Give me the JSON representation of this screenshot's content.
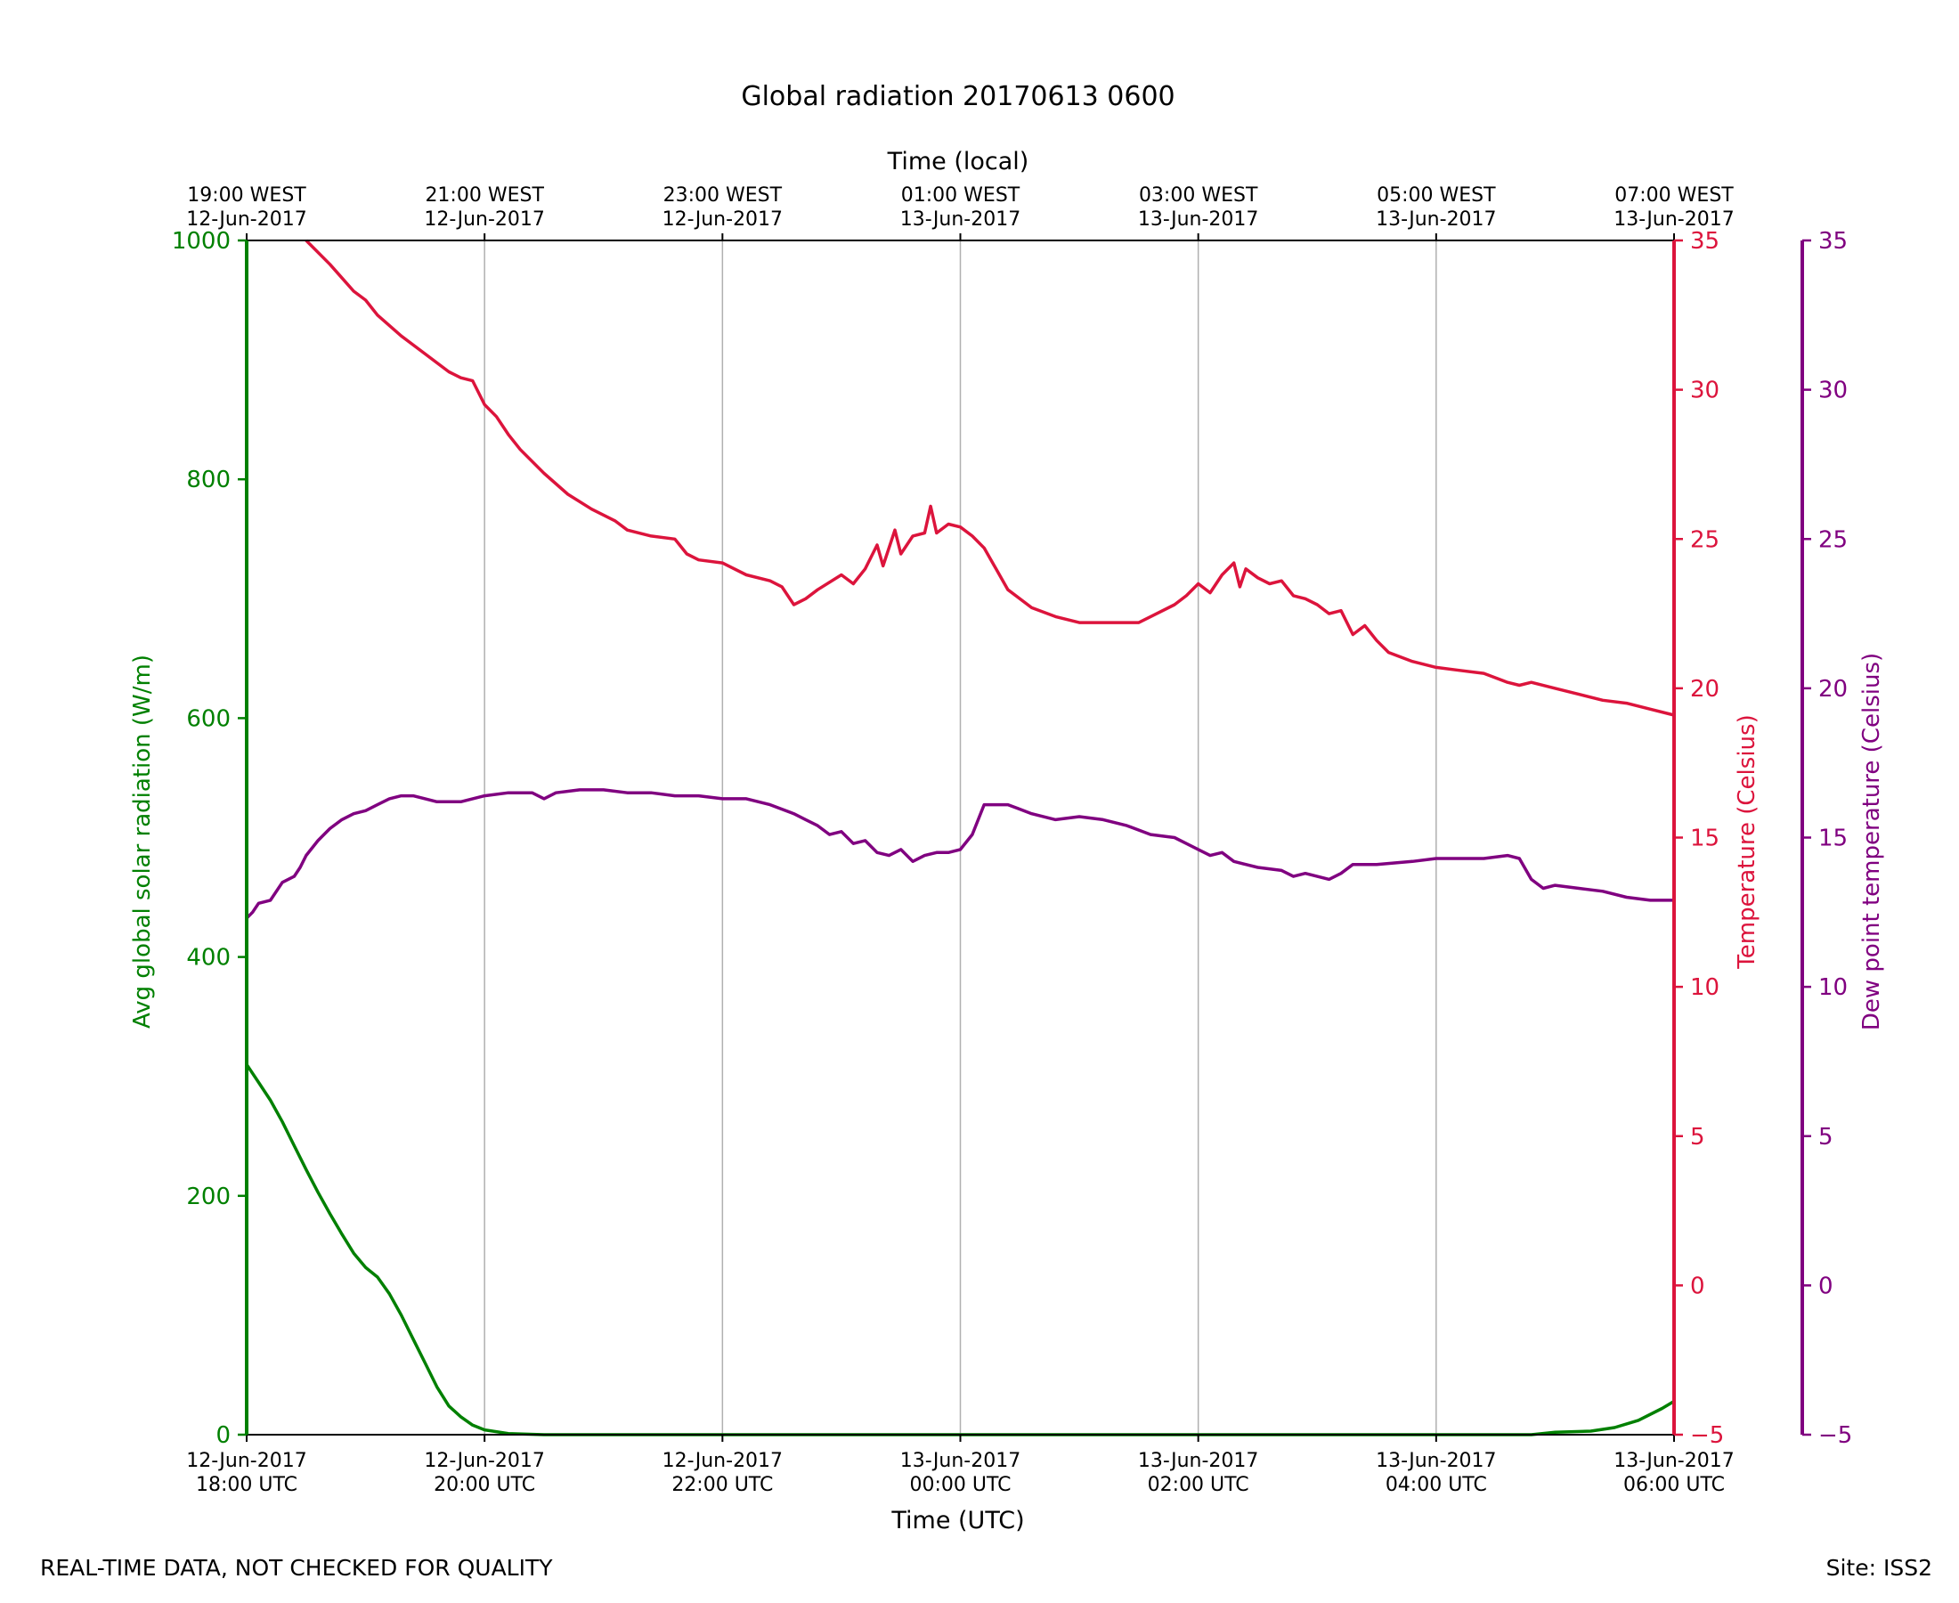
{
  "chart_data": {
    "type": "line",
    "title": "Global radiation 20170613 0600",
    "xlabel": "Time (UTC)",
    "x2label": "Time (local)",
    "x_unit": "hours since 12-Jun-2017 18:00 UTC",
    "xlim": [
      0,
      12
    ],
    "x_ticks": [
      {
        "x": 0,
        "line1": "12-Jun-2017",
        "line2": "18:00 UTC"
      },
      {
        "x": 2,
        "line1": "12-Jun-2017",
        "line2": "20:00 UTC"
      },
      {
        "x": 4,
        "line1": "12-Jun-2017",
        "line2": "22:00 UTC"
      },
      {
        "x": 6,
        "line1": "13-Jun-2017",
        "line2": "00:00 UTC"
      },
      {
        "x": 8,
        "line1": "13-Jun-2017",
        "line2": "02:00 UTC"
      },
      {
        "x": 10,
        "line1": "13-Jun-2017",
        "line2": "04:00 UTC"
      },
      {
        "x": 12,
        "line1": "13-Jun-2017",
        "line2": "06:00 UTC"
      }
    ],
    "x2_ticks": [
      {
        "x": 0,
        "line1": "19:00 WEST",
        "line2": "12-Jun-2017"
      },
      {
        "x": 2,
        "line1": "21:00 WEST",
        "line2": "12-Jun-2017"
      },
      {
        "x": 4,
        "line1": "23:00 WEST",
        "line2": "12-Jun-2017"
      },
      {
        "x": 6,
        "line1": "01:00 WEST",
        "line2": "13-Jun-2017"
      },
      {
        "x": 8,
        "line1": "03:00 WEST",
        "line2": "13-Jun-2017"
      },
      {
        "x": 10,
        "line1": "05:00 WEST",
        "line2": "13-Jun-2017"
      },
      {
        "x": 12,
        "line1": "07:00 WEST",
        "line2": "13-Jun-2017"
      }
    ],
    "grid": "vertical",
    "axes": {
      "radiation": {
        "label": "Avg global solar radiation (W/m)",
        "ylim": [
          0,
          1000
        ],
        "ticks": [
          "0",
          "200",
          "400",
          "600",
          "800",
          "1000"
        ],
        "color": "#008000",
        "side": "left"
      },
      "temperature": {
        "label": "Temperature (Celsius)",
        "ylim": [
          -5,
          35
        ],
        "ticks": [
          "−5",
          "0",
          "5",
          "10",
          "15",
          "20",
          "25",
          "30",
          "35"
        ],
        "color": "#dc143c",
        "side": "right"
      },
      "dewpoint": {
        "label": "Dew point temperature (Celsius)",
        "ylim": [
          -5,
          35
        ],
        "ticks": [
          "−5",
          "0",
          "5",
          "10",
          "15",
          "20",
          "25",
          "30",
          "35"
        ],
        "color": "#800080",
        "side": "right-outer"
      }
    },
    "series": [
      {
        "axis": "radiation",
        "color": "#008000",
        "points": [
          [
            0,
            310
          ],
          [
            0.1,
            295
          ],
          [
            0.2,
            280
          ],
          [
            0.3,
            262
          ],
          [
            0.4,
            242
          ],
          [
            0.5,
            222
          ],
          [
            0.6,
            203
          ],
          [
            0.7,
            185
          ],
          [
            0.8,
            168
          ],
          [
            0.9,
            152
          ],
          [
            1.0,
            140
          ],
          [
            1.1,
            132
          ],
          [
            1.15,
            125
          ],
          [
            1.2,
            118
          ],
          [
            1.3,
            100
          ],
          [
            1.4,
            80
          ],
          [
            1.5,
            60
          ],
          [
            1.6,
            40
          ],
          [
            1.7,
            24
          ],
          [
            1.8,
            15
          ],
          [
            1.9,
            8
          ],
          [
            2.0,
            4
          ],
          [
            2.2,
            1
          ],
          [
            2.5,
            0
          ],
          [
            4,
            0
          ],
          [
            6,
            0
          ],
          [
            8,
            0
          ],
          [
            10,
            0
          ],
          [
            10.8,
            0
          ],
          [
            11.0,
            2
          ],
          [
            11.3,
            3
          ],
          [
            11.5,
            6
          ],
          [
            11.7,
            12
          ],
          [
            11.9,
            22
          ],
          [
            12,
            28
          ]
        ]
      },
      {
        "axis": "temperature",
        "color": "#dc143c",
        "points": [
          [
            0.5,
            35
          ],
          [
            0.7,
            34.2
          ],
          [
            0.9,
            33.3
          ],
          [
            1.0,
            33
          ],
          [
            1.1,
            32.5
          ],
          [
            1.3,
            31.8
          ],
          [
            1.5,
            31.2
          ],
          [
            1.7,
            30.6
          ],
          [
            1.8,
            30.4
          ],
          [
            1.9,
            30.3
          ],
          [
            2.0,
            29.5
          ],
          [
            2.1,
            29.1
          ],
          [
            2.2,
            28.5
          ],
          [
            2.3,
            28
          ],
          [
            2.5,
            27.2
          ],
          [
            2.7,
            26.5
          ],
          [
            2.9,
            26
          ],
          [
            3.1,
            25.6
          ],
          [
            3.2,
            25.3
          ],
          [
            3.4,
            25.1
          ],
          [
            3.6,
            25
          ],
          [
            3.7,
            24.5
          ],
          [
            3.8,
            24.3
          ],
          [
            4.0,
            24.2
          ],
          [
            4.2,
            23.8
          ],
          [
            4.4,
            23.6
          ],
          [
            4.5,
            23.4
          ],
          [
            4.6,
            22.8
          ],
          [
            4.7,
            23
          ],
          [
            4.8,
            23.3
          ],
          [
            5.0,
            23.8
          ],
          [
            5.1,
            23.5
          ],
          [
            5.2,
            24
          ],
          [
            5.3,
            24.8
          ],
          [
            5.35,
            24.1
          ],
          [
            5.45,
            25.3
          ],
          [
            5.5,
            24.5
          ],
          [
            5.6,
            25.1
          ],
          [
            5.7,
            25.2
          ],
          [
            5.75,
            26.1
          ],
          [
            5.8,
            25.2
          ],
          [
            5.9,
            25.5
          ],
          [
            6.0,
            25.4
          ],
          [
            6.1,
            25.1
          ],
          [
            6.2,
            24.7
          ],
          [
            6.3,
            24
          ],
          [
            6.4,
            23.3
          ],
          [
            6.6,
            22.7
          ],
          [
            6.8,
            22.4
          ],
          [
            7.0,
            22.2
          ],
          [
            7.5,
            22.2
          ],
          [
            7.6,
            22.4
          ],
          [
            7.8,
            22.8
          ],
          [
            7.9,
            23.1
          ],
          [
            8.0,
            23.5
          ],
          [
            8.1,
            23.2
          ],
          [
            8.2,
            23.8
          ],
          [
            8.3,
            24.2
          ],
          [
            8.35,
            23.4
          ],
          [
            8.4,
            24
          ],
          [
            8.5,
            23.7
          ],
          [
            8.6,
            23.5
          ],
          [
            8.7,
            23.6
          ],
          [
            8.8,
            23.1
          ],
          [
            8.9,
            23
          ],
          [
            9.0,
            22.8
          ],
          [
            9.1,
            22.5
          ],
          [
            9.2,
            22.6
          ],
          [
            9.3,
            21.8
          ],
          [
            9.4,
            22.1
          ],
          [
            9.5,
            21.6
          ],
          [
            9.6,
            21.2
          ],
          [
            9.8,
            20.9
          ],
          [
            10.0,
            20.7
          ],
          [
            10.2,
            20.6
          ],
          [
            10.4,
            20.5
          ],
          [
            10.6,
            20.2
          ],
          [
            10.7,
            20.1
          ],
          [
            10.8,
            20.2
          ],
          [
            11.0,
            20
          ],
          [
            11.2,
            19.8
          ],
          [
            11.4,
            19.6
          ],
          [
            11.6,
            19.5
          ],
          [
            11.8,
            19.3
          ],
          [
            12,
            19.1
          ]
        ]
      },
      {
        "axis": "dewpoint",
        "color": "#800080",
        "points": [
          [
            0,
            12.3
          ],
          [
            0.05,
            12.5
          ],
          [
            0.1,
            12.8
          ],
          [
            0.2,
            12.9
          ],
          [
            0.3,
            13.5
          ],
          [
            0.4,
            13.7
          ],
          [
            0.45,
            14
          ],
          [
            0.5,
            14.4
          ],
          [
            0.6,
            14.9
          ],
          [
            0.7,
            15.3
          ],
          [
            0.8,
            15.6
          ],
          [
            0.9,
            15.8
          ],
          [
            1.0,
            15.9
          ],
          [
            1.1,
            16.1
          ],
          [
            1.2,
            16.3
          ],
          [
            1.3,
            16.4
          ],
          [
            1.4,
            16.4
          ],
          [
            1.5,
            16.3
          ],
          [
            1.6,
            16.2
          ],
          [
            1.8,
            16.2
          ],
          [
            2.0,
            16.4
          ],
          [
            2.2,
            16.5
          ],
          [
            2.4,
            16.5
          ],
          [
            2.5,
            16.3
          ],
          [
            2.6,
            16.5
          ],
          [
            2.8,
            16.6
          ],
          [
            3.0,
            16.6
          ],
          [
            3.2,
            16.5
          ],
          [
            3.4,
            16.5
          ],
          [
            3.6,
            16.4
          ],
          [
            3.8,
            16.4
          ],
          [
            4.0,
            16.3
          ],
          [
            4.2,
            16.3
          ],
          [
            4.4,
            16.1
          ],
          [
            4.6,
            15.8
          ],
          [
            4.7,
            15.6
          ],
          [
            4.8,
            15.4
          ],
          [
            4.9,
            15.1
          ],
          [
            5.0,
            15.2
          ],
          [
            5.1,
            14.8
          ],
          [
            5.2,
            14.9
          ],
          [
            5.3,
            14.5
          ],
          [
            5.4,
            14.4
          ],
          [
            5.5,
            14.6
          ],
          [
            5.6,
            14.2
          ],
          [
            5.7,
            14.4
          ],
          [
            5.8,
            14.5
          ],
          [
            5.9,
            14.5
          ],
          [
            6.0,
            14.6
          ],
          [
            6.1,
            15.1
          ],
          [
            6.2,
            16.1
          ],
          [
            6.4,
            16.1
          ],
          [
            6.6,
            15.8
          ],
          [
            6.8,
            15.6
          ],
          [
            7.0,
            15.7
          ],
          [
            7.2,
            15.6
          ],
          [
            7.4,
            15.4
          ],
          [
            7.6,
            15.1
          ],
          [
            7.8,
            15
          ],
          [
            7.9,
            14.8
          ],
          [
            8.0,
            14.6
          ],
          [
            8.1,
            14.4
          ],
          [
            8.2,
            14.5
          ],
          [
            8.3,
            14.2
          ],
          [
            8.4,
            14.1
          ],
          [
            8.5,
            14
          ],
          [
            8.7,
            13.9
          ],
          [
            8.8,
            13.7
          ],
          [
            8.9,
            13.8
          ],
          [
            9.0,
            13.7
          ],
          [
            9.1,
            13.6
          ],
          [
            9.2,
            13.8
          ],
          [
            9.3,
            14.1
          ],
          [
            9.5,
            14.1
          ],
          [
            9.8,
            14.2
          ],
          [
            10.0,
            14.3
          ],
          [
            10.2,
            14.3
          ],
          [
            10.4,
            14.3
          ],
          [
            10.6,
            14.4
          ],
          [
            10.7,
            14.3
          ],
          [
            10.8,
            13.6
          ],
          [
            10.9,
            13.3
          ],
          [
            11.0,
            13.4
          ],
          [
            11.2,
            13.3
          ],
          [
            11.4,
            13.2
          ],
          [
            11.6,
            13
          ],
          [
            11.8,
            12.9
          ],
          [
            12,
            12.9
          ]
        ]
      }
    ]
  },
  "footer": {
    "left": "REAL-TIME DATA, NOT CHECKED FOR QUALITY",
    "right": "Site: ISS2"
  }
}
